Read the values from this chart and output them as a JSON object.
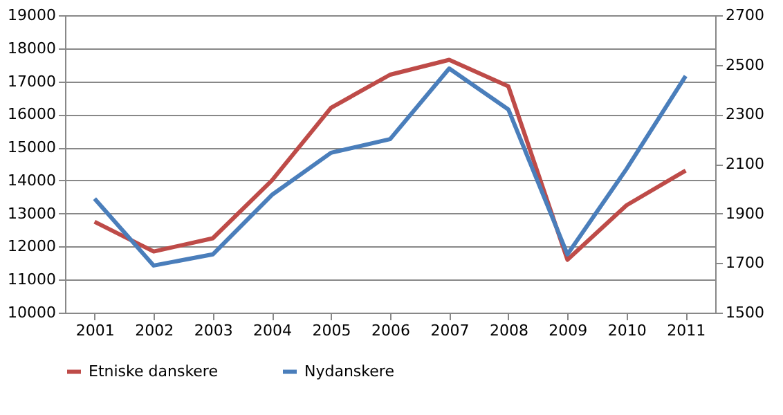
{
  "chart_data": {
    "type": "line",
    "categories": [
      "2001",
      "2002",
      "2003",
      "2004",
      "2005",
      "2006",
      "2007",
      "2008",
      "2009",
      "2010",
      "2011"
    ],
    "series": [
      {
        "name": "Etniske danskere",
        "color": "#be4b48",
        "values": [
          12750,
          11850,
          12250,
          14000,
          16200,
          17200,
          17650,
          16850,
          11600,
          13250,
          14300
        ]
      },
      {
        "name": "Nydanskere",
        "color": "#4a7ebb",
        "axis": "y2",
        "values": [
          1960,
          1690,
          1735,
          1975,
          2145,
          2200,
          2485,
          2320,
          1735,
          2080,
          2455
        ]
      }
    ],
    "ylim": [
      10000,
      19000
    ],
    "yticks": [
      10000,
      11000,
      12000,
      13000,
      14000,
      15000,
      16000,
      17000,
      18000,
      19000
    ],
    "y2lim": [
      1500,
      2700
    ],
    "y2ticks": [
      1500,
      1700,
      1900,
      2100,
      2300,
      2500,
      2700
    ],
    "grid": "y",
    "legend": "bottom",
    "marker": "none",
    "line_style": "solid"
  }
}
